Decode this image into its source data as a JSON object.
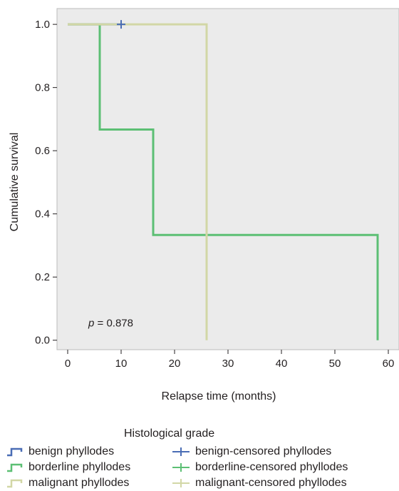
{
  "chart_data": {
    "type": "line",
    "subtype": "kaplan-meier step",
    "title": "",
    "xlabel": "Relapse time (months)",
    "ylabel": "Cumulative survival",
    "xlim": [
      -2,
      62
    ],
    "ylim": [
      -0.03,
      1.05
    ],
    "xticks": [
      0,
      10,
      20,
      30,
      40,
      50,
      60
    ],
    "yticks": [
      0.0,
      0.2,
      0.4,
      0.6,
      0.8,
      1.0
    ],
    "xtick_labels": [
      "0",
      "10",
      "20",
      "30",
      "40",
      "50",
      "60"
    ],
    "ytick_labels": [
      "0.0",
      "0.2",
      "0.4",
      "0.6",
      "0.8",
      "1.0"
    ],
    "annotation": {
      "italic": "p",
      "text": " = 0.878",
      "x": 2,
      "y": 0.03
    },
    "grid": false,
    "plot_background": "#ebebeb",
    "series": [
      {
        "name": "benign phyllodes",
        "color": "#4a6db5",
        "steps": [
          [
            0,
            1.0
          ],
          [
            10,
            1.0
          ]
        ]
      },
      {
        "name": "borderline phyllodes",
        "color": "#5cbf74",
        "steps": [
          [
            0,
            1.0
          ],
          [
            6,
            1.0
          ],
          [
            6,
            0.667
          ],
          [
            16,
            0.667
          ],
          [
            16,
            0.333
          ],
          [
            58,
            0.333
          ],
          [
            58,
            0.0
          ]
        ]
      },
      {
        "name": "malignant phyllodes",
        "color": "#d2d7a6",
        "steps": [
          [
            0,
            1.0
          ],
          [
            26,
            1.0
          ],
          [
            26,
            0.0
          ]
        ]
      }
    ],
    "censored": [
      {
        "name": "benign-censored phyllodes",
        "color": "#4a6db5",
        "points": [
          [
            10,
            1.0
          ]
        ]
      },
      {
        "name": "borderline-censored phyllodes",
        "color": "#5cbf74",
        "points": []
      },
      {
        "name": "malignant-censored phyllodes",
        "color": "#d2d7a6",
        "points": []
      }
    ],
    "legend": {
      "title": "Histological grade",
      "placement": "bottom",
      "entries": [
        {
          "label": "benign phyllodes",
          "kind": "line",
          "color": "#4a6db5"
        },
        {
          "label": "benign-censored phyllodes",
          "kind": "censor",
          "color": "#4a6db5"
        },
        {
          "label": "borderline phyllodes",
          "kind": "line",
          "color": "#5cbf74"
        },
        {
          "label": "borderline-censored phyllodes",
          "kind": "censor",
          "color": "#5cbf74"
        },
        {
          "label": "malignant phyllodes",
          "kind": "line",
          "color": "#d2d7a6"
        },
        {
          "label": "malignant-censored phyllodes",
          "kind": "censor",
          "color": "#d2d7a6"
        }
      ]
    }
  }
}
